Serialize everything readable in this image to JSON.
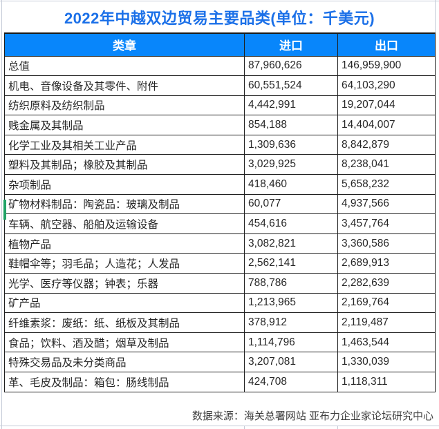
{
  "chart_data": {
    "type": "table",
    "title": "2022年中越双边贸易主要品类(单位：千美元)",
    "columns": [
      "类章",
      "进口",
      "出口"
    ],
    "rows": [
      [
        "总值",
        "87,960,626",
        "146,959,900"
      ],
      [
        "机电、音像设备及其零件、附件",
        "60,551,524",
        "64,103,290"
      ],
      [
        "纺织原料及纺织制品",
        "4,442,991",
        "19,207,044"
      ],
      [
        "贱金属及其制品",
        "854,188",
        "14,404,007"
      ],
      [
        "化学工业及其相关工业产品",
        "1,309,636",
        "8,842,879"
      ],
      [
        "塑料及其制品；橡胶及其制品",
        "3,029,925",
        "8,238,041"
      ],
      [
        "杂项制品",
        "418,460",
        "5,658,232"
      ],
      [
        "矿物材料制品：陶瓷品：玻璃及制品",
        "60,077",
        "4,937,566"
      ],
      [
        "车辆、航空器、船舶及运输设备",
        "454,616",
        "3,457,764"
      ],
      [
        "植物产品",
        "3,082,821",
        "3,360,586"
      ],
      [
        "鞋帽伞等；羽毛品；人造花；人发品",
        "2,562,141",
        "2,689,913"
      ],
      [
        "光学、医疗等仪器；钟表；乐器",
        "788,786",
        "2,282,639"
      ],
      [
        "矿产品",
        "1,213,965",
        "2,169,764"
      ],
      [
        "纤维素浆：废纸：纸、纸板及其制品",
        "378,912",
        "2,119,487"
      ],
      [
        "食品；饮料、酒及醋；烟草及制品",
        "1,114,796",
        "1,463,544"
      ],
      [
        "特殊交易品及未分类商品",
        "3,207,081",
        "1,330,039"
      ],
      [
        "革、毛皮及制品：箱包：肠线制品",
        "424,708",
        "1,118,311"
      ]
    ],
    "source_note": "数据来源：海关总署网站 亚布力企业家论坛研究中心",
    "layout": {
      "grid": "full black cell borders",
      "legend": "none"
    }
  },
  "colors": {
    "title_text": "#1b70e8",
    "header_bg": "#0886fb",
    "header_text": "#ffffff",
    "cell_border": "#1f1f1f",
    "row_marker_green": "#21a366",
    "sheet_gridline": "#c4cad7"
  }
}
